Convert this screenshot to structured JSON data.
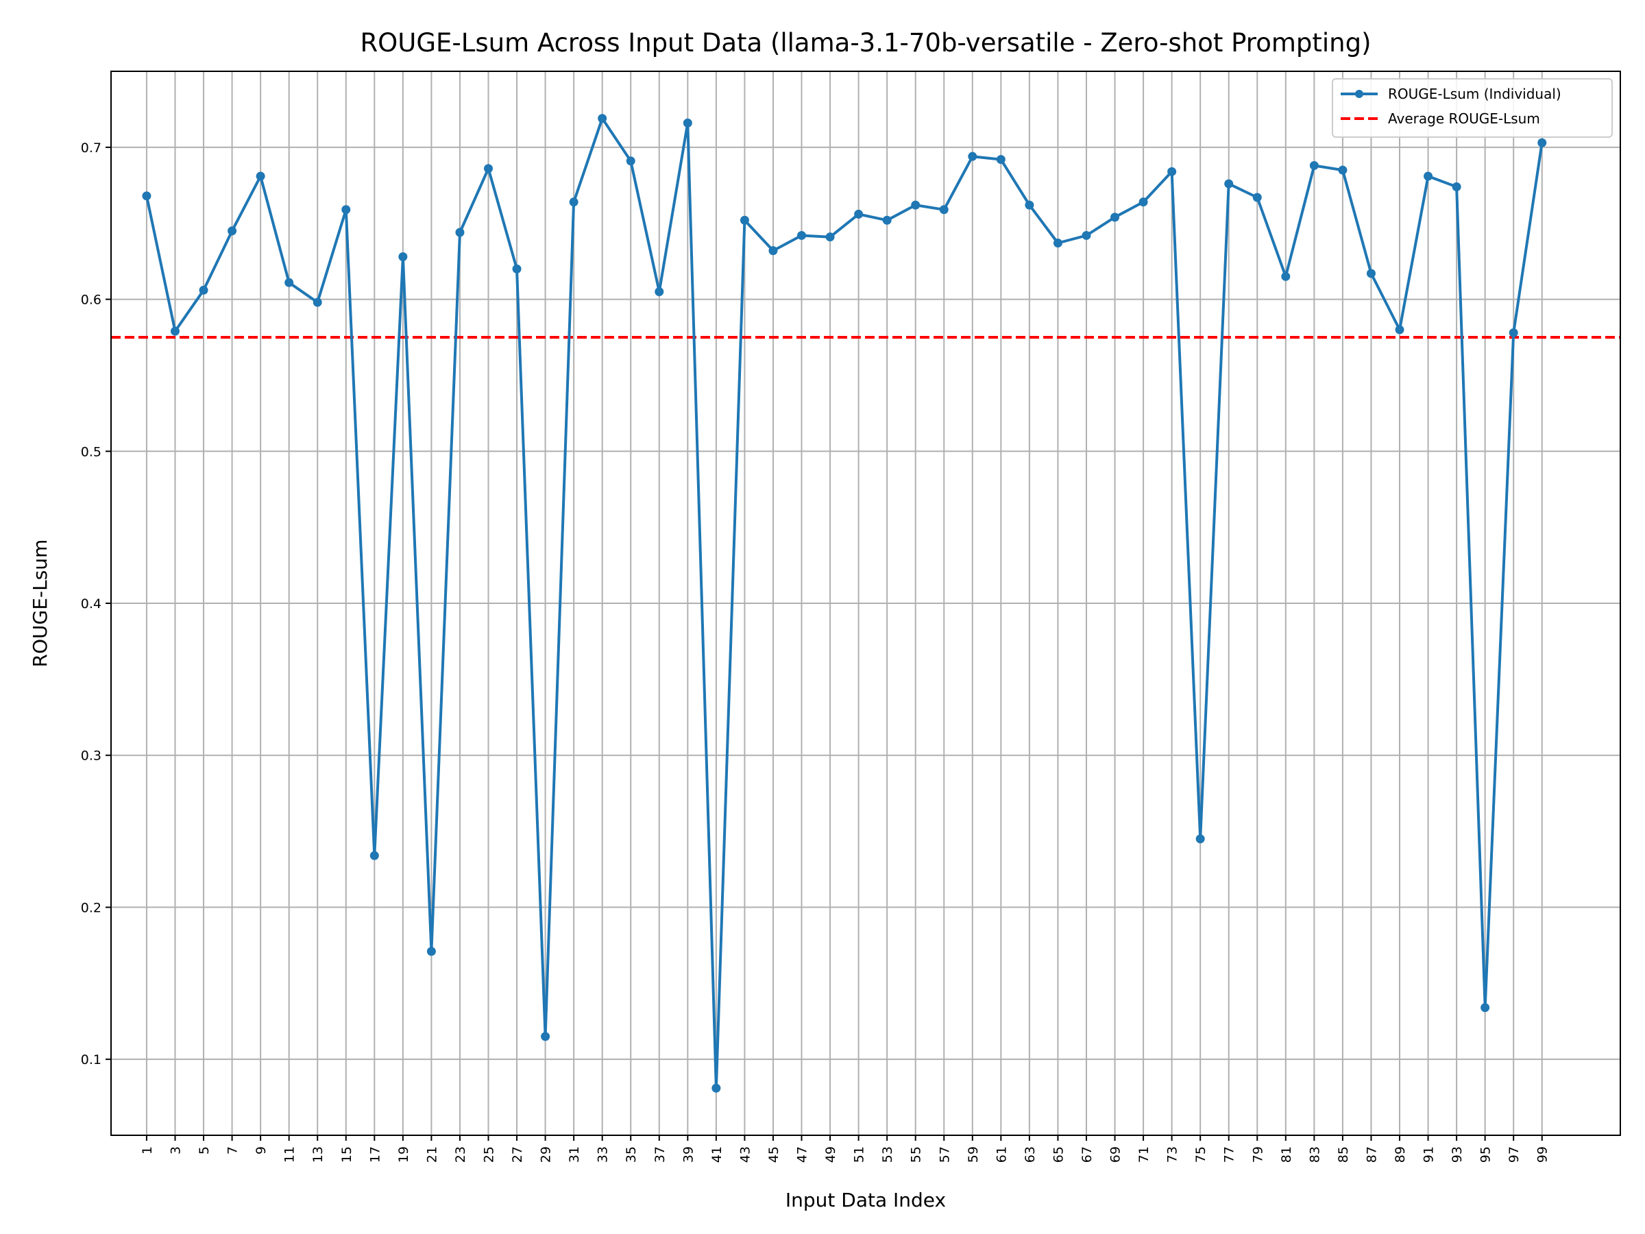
{
  "chart_data": {
    "type": "line",
    "title": "ROUGE-Lsum Across Input Data (llama-3.1-70b-versatile - Zero-shot Prompting)",
    "xlabel": "Input Data Index",
    "ylabel": "ROUGE-Lsum",
    "xlim": [
      -1.5,
      104.5
    ],
    "ylim": [
      0.05,
      0.75
    ],
    "x_ticks": [
      1,
      3,
      5,
      7,
      9,
      11,
      13,
      15,
      17,
      19,
      21,
      23,
      25,
      27,
      29,
      31,
      33,
      35,
      37,
      39,
      41,
      43,
      45,
      47,
      49,
      51,
      53,
      55,
      57,
      59,
      61,
      63,
      65,
      67,
      69,
      71,
      73,
      75,
      77,
      79,
      81,
      83,
      85,
      87,
      89,
      91,
      93,
      95,
      97,
      99
    ],
    "y_ticks": [
      0.1,
      0.2,
      0.3,
      0.4,
      0.5,
      0.6,
      0.7
    ],
    "y_tick_labels": [
      "0.1",
      "0.2",
      "0.3",
      "0.4",
      "0.5",
      "0.6",
      "0.7"
    ],
    "grid": true,
    "legend_position": "top-right",
    "series": [
      {
        "name": "ROUGE-Lsum (Individual)",
        "color": "#1f77b4",
        "style": "solid-with-markers",
        "x": [
          1,
          3,
          5,
          7,
          9,
          11,
          13,
          15,
          17,
          19,
          21,
          23,
          25,
          27,
          29,
          31,
          33,
          35,
          37,
          39,
          41,
          43,
          45,
          47,
          49,
          51,
          53,
          55,
          57,
          59,
          61,
          63,
          65,
          67,
          69,
          71,
          73,
          75,
          77,
          79,
          81,
          83,
          85,
          87,
          89,
          91,
          93,
          95,
          97,
          99
        ],
        "values": [
          0.668,
          0.579,
          0.606,
          0.645,
          0.681,
          0.611,
          0.598,
          0.659,
          0.234,
          0.628,
          0.171,
          0.644,
          0.686,
          0.62,
          0.115,
          0.664,
          0.719,
          0.691,
          0.605,
          0.716,
          0.081,
          0.652,
          0.632,
          0.642,
          0.641,
          0.656,
          0.652,
          0.662,
          0.659,
          0.694,
          0.692,
          0.662,
          0.637,
          0.642,
          0.654,
          0.664,
          0.684,
          0.245,
          0.676,
          0.667,
          0.615,
          0.688,
          0.685,
          0.617,
          0.58,
          0.681,
          0.674,
          0.134,
          0.578,
          0.703
        ]
      },
      {
        "name": "Average ROUGE-Lsum",
        "color": "#ff0000",
        "style": "dashed",
        "value": 0.575
      }
    ]
  }
}
